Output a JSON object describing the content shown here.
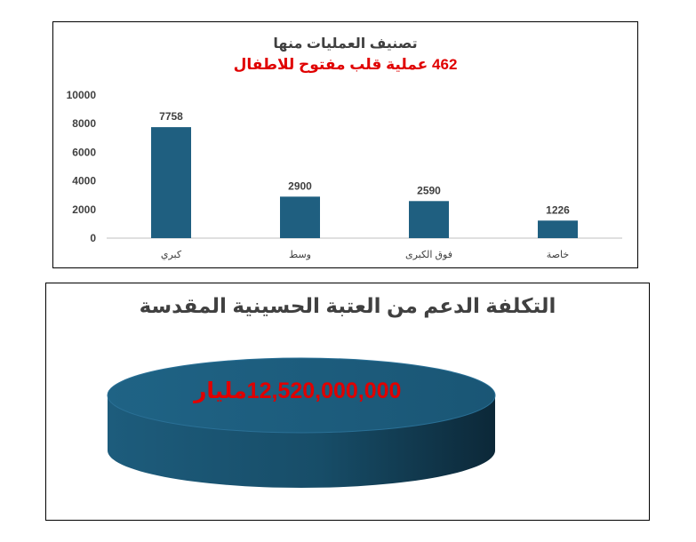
{
  "chart_data": [
    {
      "type": "bar",
      "title": "تصنيف العمليات منها",
      "subtitle": "462 عملية قلب مفتوح للاطفال",
      "categories": [
        "كبري",
        "وسط",
        "فوق الكبرى",
        "خاصة"
      ],
      "values": [
        7758,
        2900,
        2590,
        1226
      ],
      "ylim": [
        0,
        10000
      ],
      "yticks": [
        0,
        2000,
        4000,
        6000,
        8000,
        10000
      ],
      "grid": false,
      "legend": "none",
      "bar_color": "#1f5f80"
    },
    {
      "type": "pie",
      "title": "التكلفة الدعم من العتبة الحسينية المقدسة",
      "labels": [
        "12,520,000,000مليار"
      ],
      "values": [
        12520000000
      ],
      "slice_color": "#1f5f80"
    }
  ]
}
